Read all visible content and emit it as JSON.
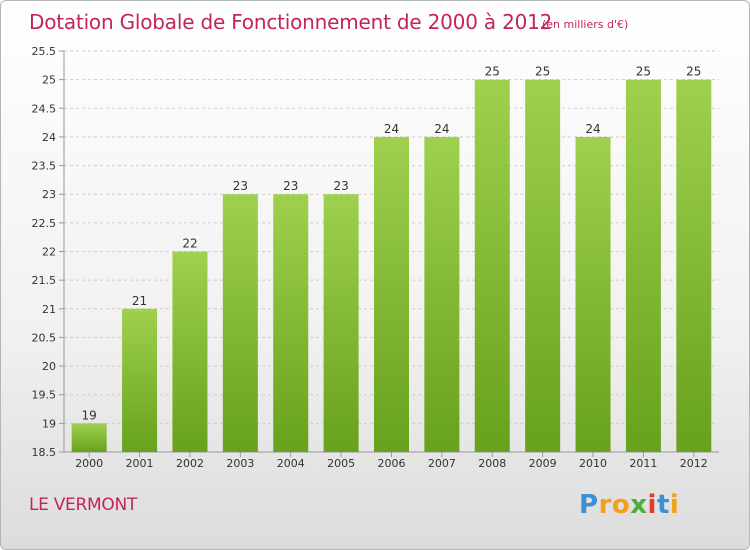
{
  "title": "Dotation Globale de Fonctionnement de 2000 à 2012",
  "unit_note": "(en milliers d'€)",
  "commune": "LE VERMONT",
  "logo": {
    "text": "Proxiti",
    "letters": [
      {
        "ch": "P",
        "color": "#3a8fd6"
      },
      {
        "ch": "r",
        "color": "#f2a019"
      },
      {
        "ch": "o",
        "color": "#f2a019"
      },
      {
        "ch": "x",
        "color": "#4fae3a"
      },
      {
        "ch": "i",
        "color": "#e8392e"
      },
      {
        "ch": "t",
        "color": "#3a8fd6"
      },
      {
        "ch": "i",
        "color": "#f2a019"
      }
    ]
  },
  "colors": {
    "bar_top": "#9fd04f",
    "bar_bottom": "#67a11e",
    "title": "#c2255c",
    "grid": "#cccccc",
    "axis_text": "#333333"
  },
  "chart_data": {
    "type": "bar",
    "categories": [
      "2000",
      "2001",
      "2002",
      "2003",
      "2004",
      "2005",
      "2006",
      "2007",
      "2008",
      "2009",
      "2010",
      "2011",
      "2012"
    ],
    "values": [
      19,
      21,
      22,
      23,
      23,
      23,
      24,
      24,
      25,
      25,
      24,
      25,
      25
    ],
    "data_labels": [
      "19",
      "21",
      "22",
      "23",
      "23",
      "23",
      "24",
      "24",
      "25",
      "25",
      "24",
      "25",
      "25"
    ],
    "ylim": [
      18.5,
      25.5
    ],
    "yticks": [
      18.5,
      19,
      19.5,
      20,
      20.5,
      21,
      21.5,
      22,
      22.5,
      23,
      23.5,
      24,
      24.5,
      25,
      25.5
    ],
    "ytick_labels": [
      "18.5",
      "19",
      "19.5",
      "20",
      "20.5",
      "21",
      "21.5",
      "22",
      "22.5",
      "23",
      "23.5",
      "24",
      "24.5",
      "25",
      "25.5"
    ],
    "grid": true
  }
}
